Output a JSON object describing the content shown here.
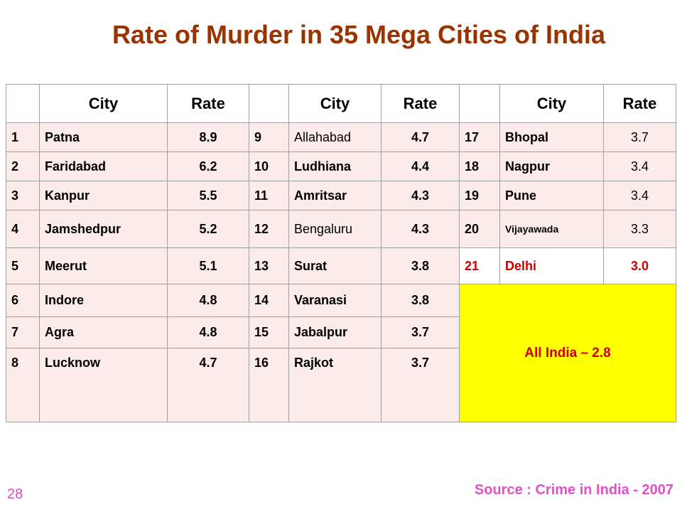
{
  "title": "Rate of Murder in 35 Mega Cities of India",
  "header": {
    "city": "City",
    "rate": "Rate"
  },
  "rows": [
    [
      {
        "n": "1",
        "c": "Patna",
        "r": "8.9"
      },
      {
        "n": "9",
        "c": "Allahabad",
        "r": "4.7"
      },
      {
        "n": "17",
        "c": "Bhopal",
        "r": "3.7"
      }
    ],
    [
      {
        "n": "2",
        "c": "Faridabad",
        "r": "6.2"
      },
      {
        "n": "10",
        "c": "Ludhiana",
        "r": "4.4"
      },
      {
        "n": "18",
        "c": "Nagpur",
        "r": "3.4"
      }
    ],
    [
      {
        "n": "3",
        "c": "Kanpur",
        "r": "5.5"
      },
      {
        "n": "11",
        "c": "Amritsar",
        "r": "4.3"
      },
      {
        "n": "19",
        "c": "Pune",
        "r": "3.4"
      }
    ],
    [
      {
        "n": "4",
        "c": "Jamshedpur",
        "r": "5.2"
      },
      {
        "n": "12",
        "c": "Bengaluru",
        "r": "4.3"
      },
      {
        "n": "20",
        "c": "Vijayawada",
        "r": "3.3"
      }
    ],
    [
      {
        "n": "5",
        "c": "Meerut",
        "r": "5.1"
      },
      {
        "n": "13",
        "c": "Surat",
        "r": "3.8"
      },
      {
        "n": "21",
        "c": "Delhi",
        "r": "3.0"
      }
    ],
    [
      {
        "n": "6",
        "c": "Indore",
        "r": "4.8"
      },
      {
        "n": "14",
        "c": "Varanasi",
        "r": "3.8"
      }
    ],
    [
      {
        "n": "7",
        "c": "Agra",
        "r": "4.8"
      },
      {
        "n": "15",
        "c": "Jabalpur",
        "r": "3.7"
      }
    ],
    [
      {
        "n": "8",
        "c": "Lucknow",
        "r": "4.7"
      },
      {
        "n": "16",
        "c": "Rajkot",
        "r": "3.7"
      }
    ]
  ],
  "all_india": "All India – 2.8",
  "source": "Source : Crime in India - 2007",
  "page_number": "28",
  "colors": {
    "title": "#993300",
    "highlight": "#ffff00",
    "highlight_text": "#cc0000",
    "source": "#e64ec8"
  }
}
